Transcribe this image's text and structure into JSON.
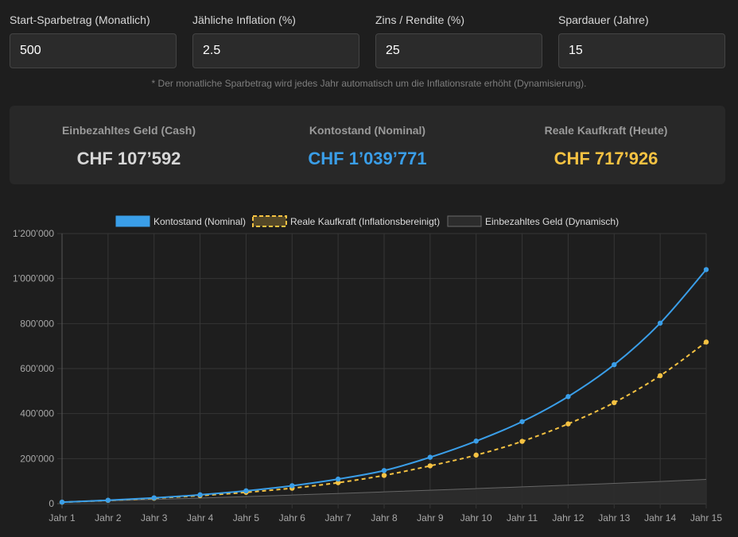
{
  "inputs": [
    {
      "label": "Start-Sparbetrag (Monatlich)",
      "value": "500"
    },
    {
      "label": "Jähliche Inflation (%)",
      "value": "2.5"
    },
    {
      "label": "Zins / Rendite (%)",
      "value": "25"
    },
    {
      "label": "Spardauer (Jahre)",
      "value": "15"
    }
  ],
  "note": "* Der monatliche Sparbetrag wird jedes Jahr automatisch um die Inflationsrate erhöht (Dynamisierung).",
  "stats": [
    {
      "label": "Einbezahltes Geld (Cash)",
      "value": "CHF 107’592",
      "color": "#d6d6d6"
    },
    {
      "label": "Kontostand (Nominal)",
      "value": "CHF 1’039’771",
      "color": "#3a9ee8"
    },
    {
      "label": "Reale Kaufkraft (Heute)",
      "value": "CHF 717’926",
      "color": "#f5c242"
    }
  ],
  "chart_data": {
    "type": "line",
    "categories": [
      "Jahr 1",
      "Jahr 2",
      "Jahr 3",
      "Jahr 4",
      "Jahr 5",
      "Jahr 6",
      "Jahr 7",
      "Jahr 8",
      "Jahr 9",
      "Jahr 10",
      "Jahr 11",
      "Jahr 12",
      "Jahr 13",
      "Jahr 14",
      "Jahr 15"
    ],
    "ylim": [
      0,
      1200000
    ],
    "yticks": [
      0,
      200000,
      400000,
      600000,
      800000,
      1000000,
      1200000
    ],
    "ytick_labels": [
      "0",
      "200’000",
      "400’000",
      "600’000",
      "800’000",
      "1’000’000",
      "1’200’000"
    ],
    "grid": true,
    "legend_position": "top",
    "series": [
      {
        "name": "Kontostand (Nominal)",
        "color": "#3a9ee8",
        "style": "solid",
        "fill": false,
        "points": true,
        "values": [
          6700,
          15100,
          25800,
          39400,
          56900,
          79600,
          109100,
          146900,
          206000,
          277900,
          364300,
          475600,
          617400,
          802000,
          1039771
        ]
      },
      {
        "name": "Reale Kaufkraft (Inflationsbereinigt)",
        "color": "#f5c242",
        "style": "dashed",
        "fill": false,
        "points": true,
        "values": [
          6500,
          14400,
          24000,
          35700,
          50300,
          68600,
          93100,
          125500,
          168000,
          215700,
          276700,
          354400,
          448900,
          568500,
          717926
        ]
      },
      {
        "name": "Einbezahltes Geld (Dynamisch)",
        "color": "#666666",
        "style": "solid",
        "fill": true,
        "points": false,
        "values": [
          6000,
          12150,
          18450,
          24900,
          31500,
          38300,
          45200,
          52300,
          59500,
          66900,
          74400,
          82100,
          90000,
          98600,
          107592
        ]
      }
    ]
  }
}
